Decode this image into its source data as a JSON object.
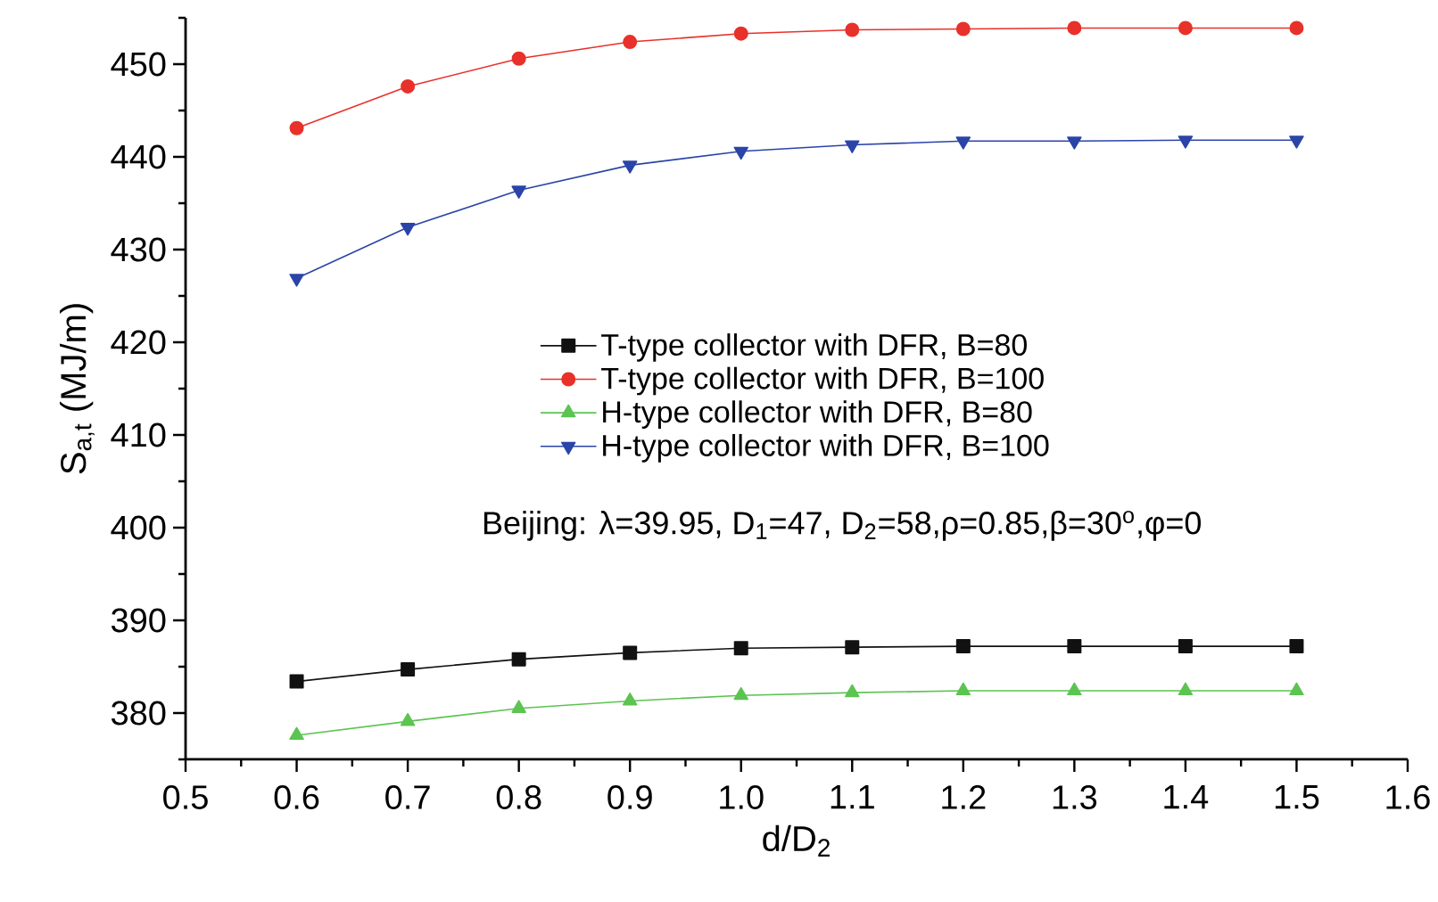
{
  "chart_data": {
    "type": "line",
    "xlabel": "d/D$_{2}$",
    "ylabel": "S$_{a,t}$ (MJ/m)",
    "x": [
      0.6,
      0.7,
      0.8,
      0.9,
      1.0,
      1.1,
      1.2,
      1.3,
      1.4,
      1.5
    ],
    "series": [
      {
        "name": "T-type collector with DFR, B=80",
        "color": "#111111",
        "marker": "square",
        "values": [
          383.4,
          384.7,
          385.8,
          386.5,
          387.0,
          387.1,
          387.2,
          387.2,
          387.2,
          387.2
        ]
      },
      {
        "name": "T-type collector with DFR, B=100",
        "color": "#e8312a",
        "marker": "circle",
        "values": [
          443.1,
          447.6,
          450.6,
          452.4,
          453.3,
          453.7,
          453.8,
          453.9,
          453.9,
          453.9
        ]
      },
      {
        "name": "H-type collector with DFR, B=80",
        "color": "#5cc450",
        "marker": "triangle",
        "values": [
          377.6,
          379.1,
          380.5,
          381.3,
          381.9,
          382.2,
          382.4,
          382.4,
          382.4,
          382.4
        ]
      },
      {
        "name": "H-type collector with DFR, B=100",
        "color": "#2b44a8",
        "marker": "triangle-down",
        "values": [
          426.9,
          432.4,
          436.4,
          439.1,
          440.6,
          441.3,
          441.7,
          441.7,
          441.8,
          441.8
        ]
      }
    ],
    "xlim": [
      0.5,
      1.6
    ],
    "ylim": [
      375,
      455
    ],
    "xticks": [
      0.5,
      {
        "value": 0.55,
        "label": null
      },
      0.6,
      {
        "value": 0.65,
        "label": null
      },
      0.7,
      {
        "value": 0.75,
        "label": null
      },
      0.8,
      {
        "value": 0.85,
        "label": null
      },
      0.9,
      {
        "value": 0.95,
        "label": null
      },
      {
        "value": 1.0,
        "label": "1.0"
      },
      {
        "value": 1.05,
        "label": null
      },
      1.1,
      {
        "value": 1.15,
        "label": null
      },
      1.2,
      {
        "value": 1.25,
        "label": null
      },
      1.3,
      {
        "value": 1.35,
        "label": null
      },
      1.4,
      {
        "value": 1.45,
        "label": null
      },
      1.5,
      {
        "value": 1.55,
        "label": null
      },
      1.6
    ],
    "yticks": [
      {
        "value": 375,
        "label": null
      },
      380,
      {
        "value": 385,
        "label": null
      },
      390,
      {
        "value": 395,
        "label": null
      },
      400,
      {
        "value": 405,
        "label": null
      },
      410,
      {
        "value": 415,
        "label": null
      },
      420,
      {
        "value": 425,
        "label": null
      },
      430,
      {
        "value": 435,
        "label": null
      },
      440,
      {
        "value": 445,
        "label": null
      },
      450,
      {
        "value": 455,
        "label": null
      }
    ],
    "annotations": [
      "Beijing: λ=39.95, D$_{1}$=47, D$_{2}$=58,ρ=0.85,β=30$^{o}$,φ=0"
    ],
    "legend": "center",
    "grid": false,
    "line_style": "solid"
  }
}
